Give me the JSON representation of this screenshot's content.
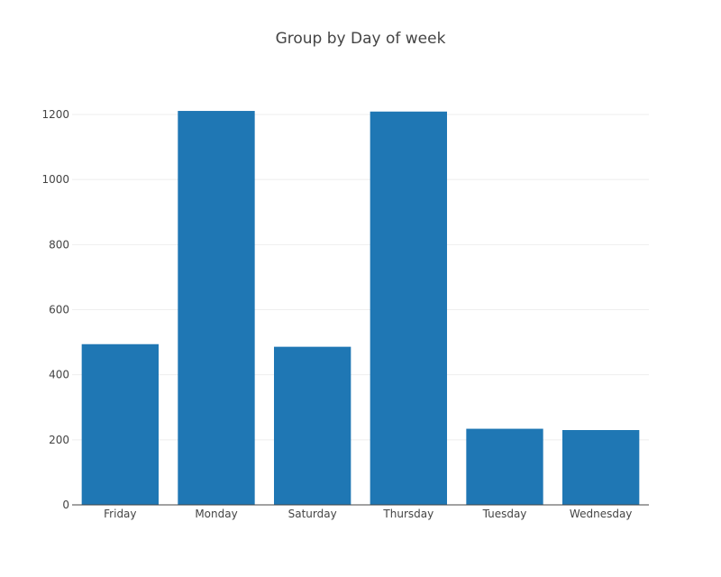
{
  "chart_data": {
    "type": "bar",
    "title": "Group by Day of week",
    "xlabel": "",
    "ylabel": "",
    "categories": [
      "Friday",
      "Monday",
      "Saturday",
      "Thursday",
      "Tuesday",
      "Wednesday"
    ],
    "values": [
      494,
      1211,
      486,
      1209,
      234,
      230
    ],
    "ylim": [
      0,
      1200
    ],
    "yticks": [
      0,
      200,
      400,
      600,
      800,
      1000,
      1200
    ],
    "grid": true,
    "legend": "none",
    "bar_color": "#1f77b4"
  }
}
